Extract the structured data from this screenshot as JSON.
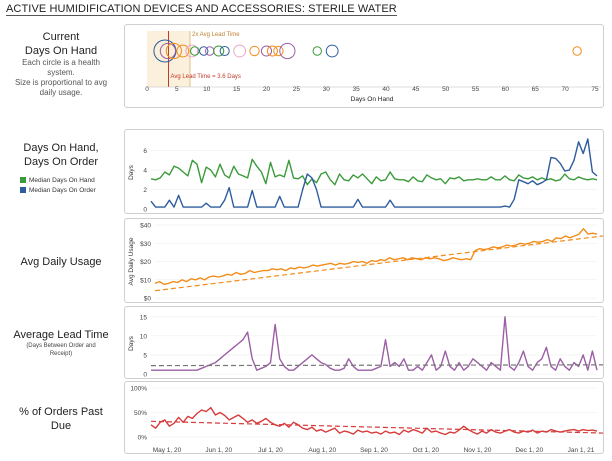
{
  "header": {
    "title": "ACTIVE HUMIDIFICATION DEVICES AND ACCESSORIES: STERILE WATER"
  },
  "labels": {
    "doh_title": [
      "Current",
      "Days On Hand"
    ],
    "doh_note": [
      "Each circle is a health",
      "system.",
      "Size is proportional to avg",
      "daily usage."
    ],
    "dod_title": [
      "Days On Hand,",
      "Days On Order"
    ],
    "usage_title": "Avg Daily Usage",
    "lead_title": "Average Lead Time",
    "lead_note": [
      "(Days Between Order and",
      "Receipt)"
    ],
    "pastdue_title": [
      "% of Orders Past",
      "Due"
    ]
  },
  "legend": [
    {
      "label": "Median Days On Hand",
      "color": "#3b9a3b"
    },
    {
      "label": "Median Days On Order",
      "color": "#2e5d9e"
    }
  ],
  "colors": {
    "green": "#3b9a3b",
    "blue": "#2e5d9e",
    "orange": "#f28c1a",
    "purple": "#9b5fa5",
    "red": "#d63b3b",
    "refline": "#c0392b"
  },
  "chart_data": [
    {
      "type": "scatter",
      "xlabel": "Days On Hand",
      "xlim": [
        0,
        76
      ],
      "xticks": [
        0,
        5,
        10,
        15,
        20,
        25,
        30,
        35,
        40,
        45,
        50,
        55,
        60,
        65,
        70,
        75
      ],
      "annotations": [
        {
          "label": "Avg Lead Time = 3.6 Days",
          "x": 3.6
        },
        {
          "label": "2x Avg Lead Time",
          "x": 7.2
        }
      ],
      "points": [
        {
          "x": 3,
          "size": 5,
          "color": "#2e5d9e"
        },
        {
          "x": 3.5,
          "size": 3,
          "color": "#9b5fa5"
        },
        {
          "x": 4.5,
          "size": 3,
          "color": "#f28c1a"
        },
        {
          "x": 6,
          "size": 2,
          "color": "#f28c1a"
        },
        {
          "x": 7.5,
          "size": 2,
          "color": "#e7a6c8"
        },
        {
          "x": 8,
          "size": 1,
          "color": "#3b9a3b"
        },
        {
          "x": 9.5,
          "size": 1,
          "color": "#2e5d9e"
        },
        {
          "x": 10.5,
          "size": 1,
          "color": "#9b5fa5"
        },
        {
          "x": 12,
          "size": 1.5,
          "color": "#3b9a3b"
        },
        {
          "x": 13,
          "size": 1.2,
          "color": "#2e5d9e"
        },
        {
          "x": 15.5,
          "size": 2,
          "color": "#e7a6c8"
        },
        {
          "x": 18,
          "size": 1.3,
          "color": "#f28c1a"
        },
        {
          "x": 20,
          "size": 1.5,
          "color": "#9b5fa5"
        },
        {
          "x": 21,
          "size": 1.5,
          "color": "#f28c1a"
        },
        {
          "x": 22,
          "size": 1.3,
          "color": "#f28c1a"
        },
        {
          "x": 23.5,
          "size": 3,
          "color": "#9b5fa5"
        },
        {
          "x": 28.5,
          "size": 1,
          "color": "#3b9a3b"
        },
        {
          "x": 31,
          "size": 2,
          "color": "#2e5d9e"
        },
        {
          "x": 72,
          "size": 1,
          "color": "#f28c1a"
        }
      ]
    },
    {
      "type": "line",
      "ylabel": "Days",
      "ylim": [
        0,
        7.5
      ],
      "yticks": [
        0,
        2,
        4,
        6
      ],
      "series": [
        {
          "name": "Median Days On Hand",
          "color": "#3b9a3b",
          "values": [
            3.1,
            3.0,
            3.2,
            3.8,
            3.5,
            4.4,
            4.2,
            3.8,
            3.4,
            5.0,
            4.6,
            2.7,
            4.3,
            4.0,
            3.3,
            4.6,
            3.5,
            3.2,
            4.4,
            3.6,
            3.4,
            3.2,
            5.1,
            4.4,
            3.8,
            2.6,
            4.8,
            3.3,
            3.5,
            3.3,
            5.0,
            3.2,
            3.1,
            3.4,
            2.5,
            3.1,
            2.7,
            3.6,
            3.8,
            3.0,
            2.5,
            3.6,
            3.0,
            2.9,
            3.5,
            3.2,
            3.6,
            3.1,
            2.6,
            3.3,
            2.9,
            3.0,
            3.8,
            3.1,
            3.0,
            3.0,
            2.8,
            3.3,
            2.9,
            2.8,
            3.5,
            3.2,
            3.0,
            3.1,
            2.6,
            3.2,
            3.1,
            3.3,
            2.9,
            3.0,
            3.0,
            3.1,
            3.0,
            3.0,
            3.3,
            3.0,
            3.0,
            3.4,
            3.0,
            2.9,
            3.5,
            3.2,
            3.1,
            3.3,
            3.0,
            3.2,
            3.0,
            3.1,
            2.9,
            3.0,
            3.6,
            3.1,
            3.0,
            3.3,
            3.1,
            3.0,
            3.1,
            3.0
          ]
        },
        {
          "name": "Median Days On Order",
          "color": "#2e5d9e",
          "values": [
            0.8,
            0.2,
            0.2,
            0.2,
            0.9,
            0.2,
            1.4,
            0.2,
            0.2,
            0.2,
            0.2,
            0.2,
            0.6,
            0.2,
            0.2,
            0.2,
            0.9,
            2.2,
            0.2,
            0.2,
            0.2,
            0.2,
            1.9,
            0.2,
            0.2,
            0.2,
            0.2,
            0.2,
            1.3,
            0.2,
            0.2,
            0.2,
            0.2,
            2.0,
            3.6,
            3.2,
            2.0,
            0.2,
            0.2,
            0.2,
            0.2,
            0.2,
            0.2,
            0.2,
            0.2,
            1.0,
            0.2,
            0.2,
            0.2,
            0.2,
            0.2,
            0.2,
            0.9,
            0.2,
            0.2,
            0.2,
            0.2,
            0.2,
            0.2,
            0.2,
            0.2,
            0.2,
            0.2,
            0.2,
            0.2,
            0.2,
            0.2,
            0.2,
            0.2,
            0.2,
            0.2,
            0.2,
            0.2,
            0.2,
            0.2,
            0.2,
            0.2,
            0.3,
            0.2,
            1.0,
            3.0,
            2.8,
            2.6,
            2.9,
            2.5,
            2.7,
            3.0,
            5.3,
            5.2,
            4.7,
            3.9,
            4.0,
            5.0,
            6.9,
            5.7,
            7.2,
            3.8,
            3.4
          ]
        }
      ]
    },
    {
      "type": "line",
      "ylabel": "Avg Daily Usage",
      "ylim": [
        0,
        40
      ],
      "yticks": [
        0,
        10,
        20,
        30,
        40
      ],
      "ytick_labels": [
        "$0",
        "$10",
        "$20",
        "$30",
        "$40"
      ],
      "trend": [
        4,
        34
      ],
      "series": [
        {
          "name": "",
          "color": "#f28c1a",
          "values": [
            8,
            9,
            7.5,
            8,
            9,
            8.5,
            10,
            9,
            10.5,
            10,
            11,
            10,
            11.5,
            12,
            11.5,
            12,
            13,
            12.5,
            14,
            13,
            13.5,
            15,
            14,
            14.5,
            15,
            15,
            16,
            15.5,
            16,
            15,
            16.5,
            16,
            17,
            16.5,
            17,
            18,
            17.5,
            18,
            18.5,
            19,
            18,
            19,
            18.5,
            19,
            20,
            19.5,
            20,
            19,
            20.5,
            20,
            21,
            20.5,
            22,
            21,
            21.5,
            22,
            21,
            22,
            21.5,
            21,
            22,
            21.5,
            22,
            21.5,
            20.5,
            21,
            22,
            21.5,
            21,
            21.5,
            21,
            26,
            27,
            26.5,
            27,
            28,
            27.5,
            28,
            29,
            28.5,
            29,
            30,
            29.5,
            30,
            31,
            30.5,
            31,
            32,
            31,
            33,
            32.5,
            34,
            33,
            34,
            35,
            38,
            35,
            35.5,
            35
          ]
        }
      ]
    },
    {
      "type": "line",
      "ylabel": "Days",
      "ylim": [
        0,
        16
      ],
      "yticks": [
        0,
        5,
        10,
        15
      ],
      "trend": [
        2.2,
        2.4
      ],
      "series": [
        {
          "name": "",
          "color": "#9b5fa5",
          "values": [
            1,
            1,
            1,
            1,
            1,
            1,
            1,
            1,
            1,
            1,
            1,
            1.5,
            2,
            2.5,
            3,
            4,
            5,
            6,
            7,
            8,
            9,
            11,
            4,
            1,
            1.5,
            2,
            3,
            13,
            4,
            2,
            1,
            1,
            2,
            3,
            4,
            5,
            4,
            3,
            2.5,
            1.5,
            1,
            1,
            1.5,
            4,
            2,
            1,
            1,
            1,
            1,
            1.5,
            2,
            9,
            2,
            3,
            2,
            4,
            1,
            1,
            2,
            1,
            3,
            5,
            1,
            2,
            6,
            2,
            1,
            3,
            1,
            2,
            4,
            3,
            2,
            1,
            3,
            2,
            1,
            15,
            2,
            1,
            3,
            6,
            2,
            1,
            3,
            4,
            7,
            2,
            1,
            4,
            2,
            1,
            3,
            2,
            5,
            1,
            6,
            1
          ]
        }
      ]
    },
    {
      "type": "line",
      "ylim": [
        0,
        100
      ],
      "yticks": [
        0,
        50,
        100
      ],
      "ytick_labels": [
        "0%",
        "50%",
        "100%"
      ],
      "xticks": [
        "May 1, 20",
        "Jun 1, 20",
        "Jul 1, 20",
        "Aug 1, 20",
        "Sep 1, 20",
        "Oct 1, 20",
        "Nov 1, 20",
        "Dec 1, 20",
        "Jan 1, 21"
      ],
      "trend": [
        32,
        8
      ],
      "series": [
        {
          "name": "",
          "color": "#d63b3b",
          "values": [
            25,
            18,
            30,
            35,
            22,
            28,
            40,
            30,
            42,
            38,
            48,
            55,
            52,
            60,
            45,
            50,
            44,
            35,
            40,
            45,
            38,
            30,
            35,
            28,
            32,
            38,
            30,
            25,
            22,
            28,
            20,
            30,
            25,
            18,
            15,
            20,
            12,
            15,
            10,
            14,
            18,
            8,
            12,
            10,
            6,
            14,
            10,
            12,
            8,
            10,
            6,
            12,
            8,
            10,
            5,
            14,
            10,
            15,
            12,
            8,
            18,
            10,
            12,
            8,
            5,
            10,
            8,
            14,
            22,
            15,
            10,
            6,
            12,
            8,
            15,
            10,
            8,
            12,
            15,
            10,
            8,
            12,
            10,
            14,
            8,
            12,
            10,
            15,
            12,
            10,
            12,
            14,
            15,
            12,
            15,
            13,
            14,
            12
          ]
        }
      ]
    }
  ]
}
